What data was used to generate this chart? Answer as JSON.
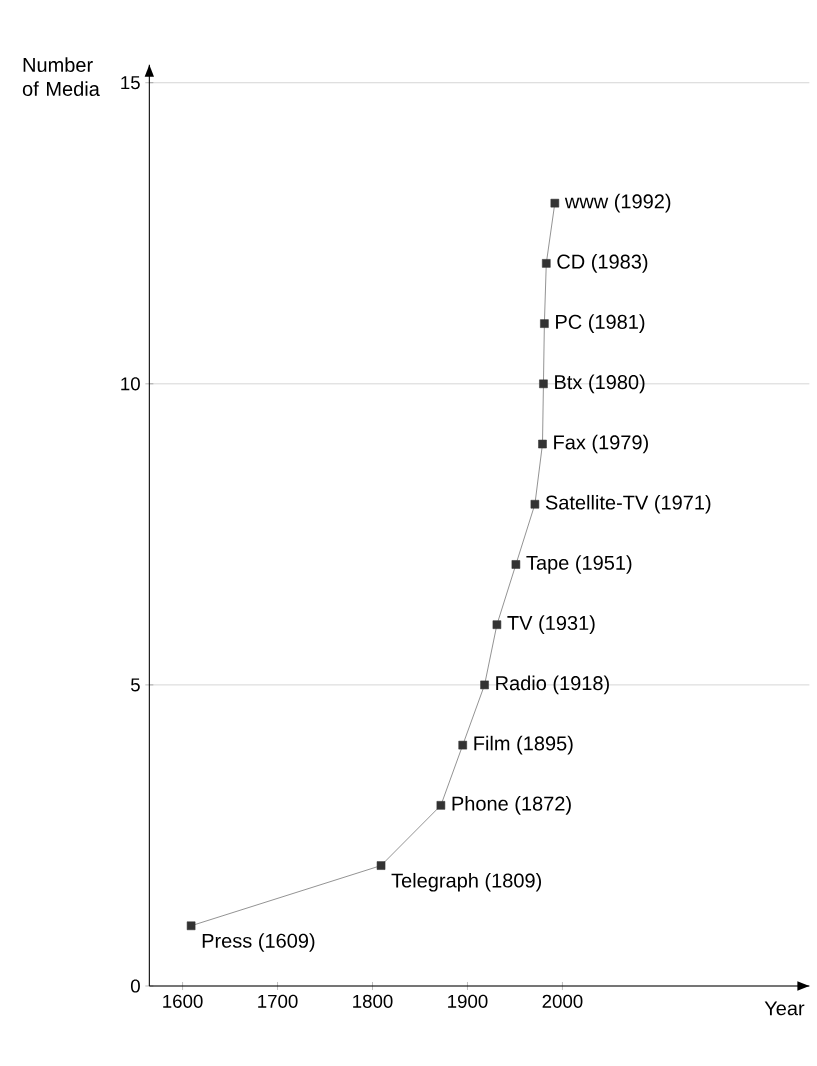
{
  "chart_data": {
    "type": "line",
    "xlabel": "Year",
    "ylabel": "Number of Media",
    "x": [
      1609,
      1809,
      1872,
      1895,
      1918,
      1931,
      1951,
      1971,
      1979,
      1980,
      1981,
      1983,
      1992
    ],
    "values": [
      1,
      2,
      3,
      4,
      5,
      6,
      7,
      8,
      9,
      10,
      11,
      12,
      13
    ],
    "color": "#333333",
    "marker": "square",
    "line_style": "solid",
    "grid": "y",
    "xlim": [
      1565,
      2260
    ],
    "ylim": [
      0,
      15.3
    ],
    "xticks": [
      1600,
      1700,
      1800,
      1900,
      2000
    ],
    "yticks": [
      0,
      5,
      10,
      15
    ],
    "annotations": [
      {
        "text": "Press (1609)",
        "x": 1609,
        "y": 1
      },
      {
        "text": "Telegraph (1809)",
        "x": 1809,
        "y": 2
      },
      {
        "text": "Phone (1872)",
        "x": 1872,
        "y": 3
      },
      {
        "text": "Film (1895)",
        "x": 1895,
        "y": 4
      },
      {
        "text": "Radio (1918)",
        "x": 1918,
        "y": 5
      },
      {
        "text": "TV (1931)",
        "x": 1931,
        "y": 6
      },
      {
        "text": "Tape (1951)",
        "x": 1951,
        "y": 7
      },
      {
        "text": "Satellite-TV (1971)",
        "x": 1971,
        "y": 8
      },
      {
        "text": "Fax (1979)",
        "x": 1979,
        "y": 9
      },
      {
        "text": "Btx (1980)",
        "x": 1980,
        "y": 10
      },
      {
        "text": "PC (1981)",
        "x": 1981,
        "y": 11
      },
      {
        "text": "CD (1983)",
        "x": 1983,
        "y": 12
      },
      {
        "text": "www (1992)",
        "x": 1992,
        "y": 13
      }
    ]
  }
}
